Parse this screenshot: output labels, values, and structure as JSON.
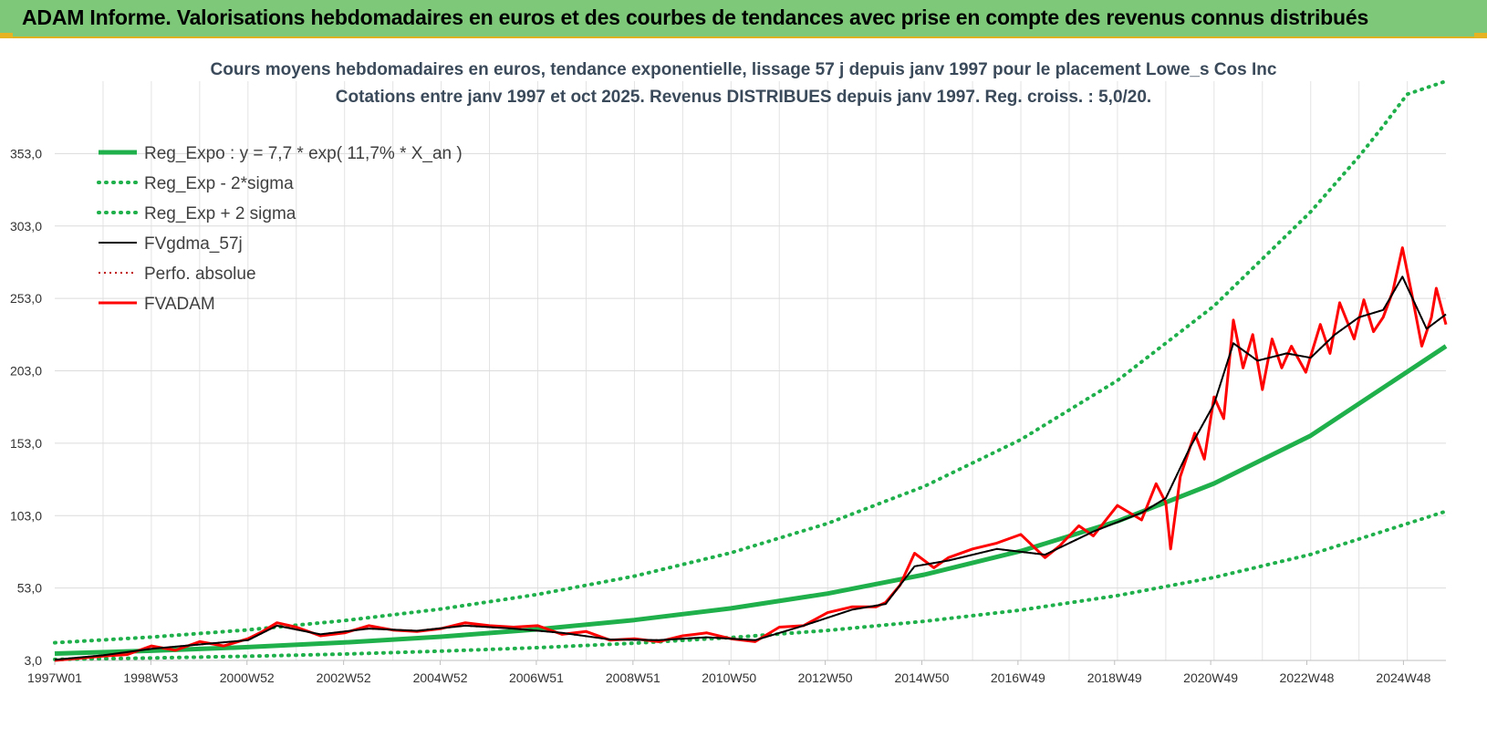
{
  "header": {
    "title": "ADAM Informe. Valorisations hebdomadaires en euros et des courbes de tendances avec prise en compte des revenus connus distribués"
  },
  "chart_data": {
    "type": "line",
    "title": "Cours moyens hebdomadaires en euros, tendance exponentielle, lissage 57 j depuis janv 1997 pour le placement Lowe_s Cos Inc",
    "subtitle": "Cotations entre janv 1997 et oct 2025. Revenus DISTRIBUES depuis janv 1997. Reg. croiss. : 5,0/20.",
    "xlabel": "",
    "ylabel": "",
    "x_range": [
      1997.0,
      2025.8
    ],
    "ylim": [
      3,
      403
    ],
    "y_ticks": [
      3,
      53,
      103,
      153,
      203,
      253,
      303,
      353
    ],
    "y_tick_labels": [
      "3,0",
      "53,0",
      "103,0",
      "153,0",
      "203,0",
      "253,0",
      "303,0",
      "353,0"
    ],
    "x_ticks": [
      1997.0,
      1998.99,
      2000.98,
      2002.98,
      2004.98,
      2006.97,
      2008.97,
      2010.96,
      2012.95,
      2014.95,
      2016.94,
      2018.94,
      2020.93,
      2022.92,
      2024.92
    ],
    "x_tick_labels": [
      "1997W01",
      "1998W53",
      "2000W52",
      "2002W52",
      "2004W52",
      "2006W51",
      "2008W51",
      "2010W50",
      "2012W50",
      "2014W50",
      "2016W49",
      "2018W49",
      "2020W49",
      "2022W48",
      "2024W48"
    ],
    "grid": true,
    "legend_position": "top-left",
    "series": [
      {
        "name": "Reg_Expo : y = 7,7 * exp( 11,7% *  X_an )",
        "color": "#1fb04b",
        "style": "solid",
        "x": [
          1997.0,
          1999,
          2001,
          2003,
          2005,
          2007,
          2009,
          2011,
          2013,
          2015,
          2017,
          2019,
          2021,
          2023,
          2025.8
        ],
        "y": [
          7.7,
          9.7,
          12.2,
          15.4,
          19.4,
          24.5,
          30.9,
          39.0,
          49.2,
          62.2,
          78.5,
          99.1,
          125.2,
          158.2,
          220
        ]
      },
      {
        "name": "Reg_Exp - 2*sigma",
        "color": "#1fb04b",
        "style": "dotted",
        "x": [
          1997.0,
          1999,
          2001,
          2003,
          2005,
          2007,
          2009,
          2011,
          2013,
          2015,
          2017,
          2019,
          2021,
          2023,
          2025.8
        ],
        "y": [
          3.7,
          4.7,
          5.9,
          7.4,
          9.4,
          11.8,
          14.9,
          18.8,
          23.7,
          30.0,
          37.8,
          47.8,
          60.3,
          76.2,
          106
        ]
      },
      {
        "name": "Reg_Exp + 2 sigma",
        "color": "#1fb04b",
        "style": "dotted",
        "x": [
          1997.0,
          1999,
          2001,
          2003,
          2005,
          2007,
          2009,
          2011,
          2013,
          2015,
          2017,
          2019,
          2021,
          2023,
          2024.0,
          2024.5,
          2025.0,
          2025.8
        ],
        "y": [
          15.2,
          19.1,
          24.1,
          30.5,
          38.5,
          48.6,
          61.2,
          77.3,
          97.6,
          123.2,
          155.5,
          196.3,
          247.8,
          312.8,
          351.0,
          372.0,
          394.0,
          403
        ]
      },
      {
        "name": "FVgdma_57j",
        "color": "#000000",
        "style": "solid",
        "x": [
          1997.0,
          1998.0,
          1999.0,
          2000.0,
          2001.0,
          2001.6,
          2002.5,
          2003.5,
          2004.5,
          2005.5,
          2006.5,
          2007.5,
          2008.5,
          2009.5,
          2010.5,
          2011.5,
          2012.5,
          2013.5,
          2014.2,
          2014.8,
          2015.5,
          2016.5,
          2017.5,
          2018.5,
          2019.5,
          2020.0,
          2020.5,
          2021.0,
          2021.4,
          2021.9,
          2022.5,
          2023.0,
          2023.5,
          2024.0,
          2024.5,
          2024.9,
          2025.4,
          2025.8
        ],
        "y": [
          3.5,
          6.5,
          11.0,
          14.0,
          17.0,
          27.0,
          21.0,
          25.0,
          23.5,
          27.0,
          25.0,
          22.0,
          17.5,
          17.0,
          19.0,
          17.0,
          27.0,
          38.0,
          42.0,
          68.0,
          72.0,
          80.0,
          76.0,
          92.0,
          105.0,
          115.0,
          150.0,
          180.0,
          222.0,
          210.0,
          215.0,
          212.0,
          228.0,
          240.0,
          245.0,
          268.0,
          232.0,
          242.0
        ]
      },
      {
        "name": "Perfo. absolue",
        "color": "#c00000",
        "style": "dotted",
        "x": [
          1997.0,
          1998.0,
          1999.0,
          2000.0,
          2001.0,
          2001.6,
          2002.5,
          2003.5,
          2004.5,
          2005.5,
          2006.5,
          2007.5,
          2008.5,
          2009.5,
          2010.5,
          2011.5,
          2012.5,
          2013.5,
          2014.2,
          2014.8,
          2015.5,
          2016.5,
          2017.5,
          2018.5,
          2019.5,
          2020.0,
          2020.5,
          2021.0,
          2021.4,
          2021.9,
          2022.5,
          2023.0,
          2023.5,
          2024.0,
          2024.5,
          2024.9,
          2025.4,
          2025.8
        ],
        "y": [
          3.5,
          6.5,
          11.0,
          14.0,
          17.0,
          27.0,
          21.0,
          25.0,
          23.5,
          27.0,
          25.0,
          22.0,
          17.5,
          17.0,
          19.0,
          17.0,
          27.0,
          38.0,
          42.0,
          68.0,
          72.0,
          80.0,
          76.0,
          92.0,
          105.0,
          115.0,
          150.0,
          180.0,
          222.0,
          210.0,
          215.0,
          212.0,
          228.0,
          240.0,
          245.0,
          268.0,
          232.0,
          242.0
        ]
      },
      {
        "name": "FVADAM",
        "color": "#ff0000",
        "style": "solid",
        "x": [
          1997.0,
          1997.5,
          1998.0,
          1998.5,
          1999.0,
          1999.5,
          2000.0,
          2000.5,
          2001.0,
          2001.3,
          2001.6,
          2002.0,
          2002.5,
          2003.0,
          2003.5,
          2004.0,
          2004.5,
          2005.0,
          2005.5,
          2006.0,
          2006.5,
          2007.0,
          2007.5,
          2008.0,
          2008.5,
          2009.0,
          2009.5,
          2010.0,
          2010.5,
          2011.0,
          2011.5,
          2012.0,
          2012.5,
          2013.0,
          2013.5,
          2014.0,
          2014.2,
          2014.5,
          2014.8,
          2015.2,
          2015.5,
          2016.0,
          2016.5,
          2017.0,
          2017.5,
          2017.8,
          2018.2,
          2018.5,
          2019.0,
          2019.5,
          2019.8,
          2020.0,
          2020.1,
          2020.3,
          2020.6,
          2020.8,
          2021.0,
          2021.2,
          2021.4,
          2021.6,
          2021.8,
          2022.0,
          2022.2,
          2022.4,
          2022.6,
          2022.9,
          2023.2,
          2023.4,
          2023.6,
          2023.9,
          2024.1,
          2024.3,
          2024.5,
          2024.7,
          2024.9,
          2025.1,
          2025.3,
          2025.5,
          2025.6,
          2025.8
        ],
        "y": [
          3.0,
          4.5,
          6.0,
          7.0,
          13.0,
          10.0,
          16.0,
          13.0,
          18.0,
          23.0,
          29.0,
          26.0,
          20.0,
          22.0,
          27.0,
          24.0,
          23.0,
          25.0,
          29.0,
          27.0,
          26.0,
          27.0,
          21.0,
          23.0,
          17.0,
          18.0,
          16.0,
          20.0,
          22.0,
          18.0,
          16.0,
          26.0,
          27.0,
          36.0,
          40.0,
          40.0,
          43.0,
          55.0,
          77.0,
          67.0,
          74.0,
          80.0,
          84.0,
          90.0,
          74.0,
          82.0,
          96.0,
          89.0,
          110.0,
          100.0,
          125.0,
          112.0,
          80.0,
          130.0,
          160.0,
          142.0,
          185.0,
          170.0,
          238.0,
          205.0,
          228.0,
          190.0,
          225.0,
          205.0,
          220.0,
          202.0,
          235.0,
          215.0,
          250.0,
          225.0,
          252.0,
          230.0,
          240.0,
          258.0,
          288.0,
          255.0,
          220.0,
          240.0,
          260.0,
          235.0
        ]
      }
    ]
  }
}
